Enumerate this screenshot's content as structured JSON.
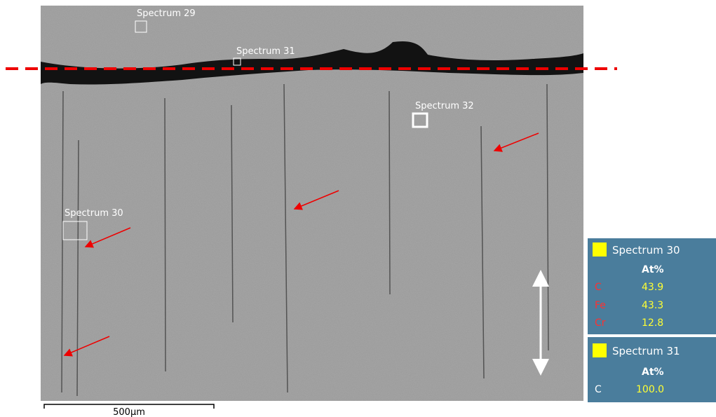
{
  "image": {
    "spectra": [
      "Spectrum 29",
      "Spectrum 31",
      "Spectrum 32",
      "Spectrum 30"
    ],
    "scale_bar": "500µm"
  },
  "panels": [
    {
      "title": "Spectrum 30",
      "unit": "At%",
      "rows": [
        [
          "C",
          "43.9"
        ],
        [
          "Fe",
          "43.3"
        ],
        [
          "Cr",
          "12.8"
        ]
      ]
    },
    {
      "title": "Spectrum 31",
      "unit": "At%",
      "rows": [
        [
          "C",
          "100.0"
        ]
      ]
    }
  ]
}
